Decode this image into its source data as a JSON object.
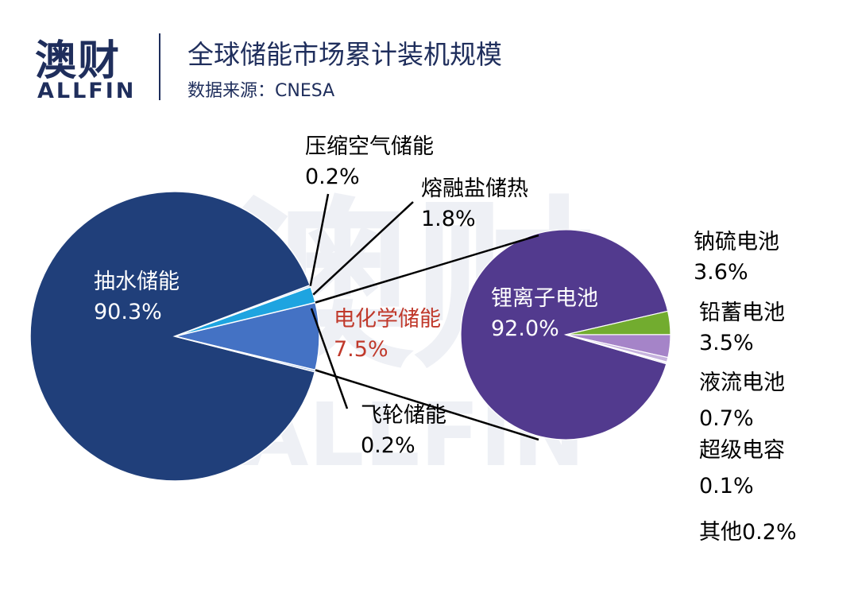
{
  "header": {
    "logo_cn": "澳财",
    "logo_en": "ALLFIN",
    "title": "全球储能市场累计装机规模",
    "source": "数据来源：CNESA"
  },
  "watermark": {
    "cn": "澳财",
    "en": "ALLFIN"
  },
  "colors": {
    "title": "#1f2e5c",
    "pumped": "#203f7a",
    "compressed_air": "#9dc3e6",
    "molten_salt": "#1ea4e0",
    "electrochemical": "#4472c4",
    "flywheel": "#7aa1dc",
    "lithium": "#523a8e",
    "sodium_sulfur": "#72ac2f",
    "lead": "#a584c8",
    "flow": "#c6b2de",
    "supercap": "#7b67b0",
    "other": "#dcd3ea",
    "highlight_label": "#c0392b"
  },
  "chart_data": [
    {
      "type": "pie",
      "title": "",
      "slices": [
        {
          "name": "抽水储能",
          "value": 90.3
        },
        {
          "name": "压缩空气储能",
          "value": 0.2
        },
        {
          "name": "熔融盐储热",
          "value": 1.8
        },
        {
          "name": "电化学储能",
          "value": 7.5
        },
        {
          "name": "飞轮储能",
          "value": 0.2
        }
      ],
      "labels": [
        {
          "name": "抽水储能",
          "value": "90.3%"
        },
        {
          "name": "压缩空气储能",
          "value": "0.2%"
        },
        {
          "name": "熔融盐储热",
          "value": "1.8%"
        },
        {
          "name": "电化学储能",
          "value": "7.5%"
        },
        {
          "name": "飞轮储能",
          "value": "0.2%"
        }
      ]
    },
    {
      "type": "pie",
      "title": "",
      "slices": [
        {
          "name": "锂离子电池",
          "value": 92.0
        },
        {
          "name": "钠硫电池",
          "value": 3.6
        },
        {
          "name": "铅蓄电池",
          "value": 3.5
        },
        {
          "name": "液流电池",
          "value": 0.7
        },
        {
          "name": "超级电容",
          "value": 0.1
        },
        {
          "name": "其他",
          "value": 0.2
        }
      ],
      "labels": [
        {
          "name": "锂离子电池",
          "value": "92.0%"
        },
        {
          "name": "钠硫电池",
          "value": "3.6%"
        },
        {
          "name": "铅蓄电池",
          "value": "3.5%"
        },
        {
          "name": "液流电池",
          "value": "0.7%"
        },
        {
          "name": "超级电容",
          "value": "0.1%"
        },
        {
          "name": "其他",
          "value": "0.2%"
        }
      ],
      "other_label": "其他0.2%"
    }
  ]
}
